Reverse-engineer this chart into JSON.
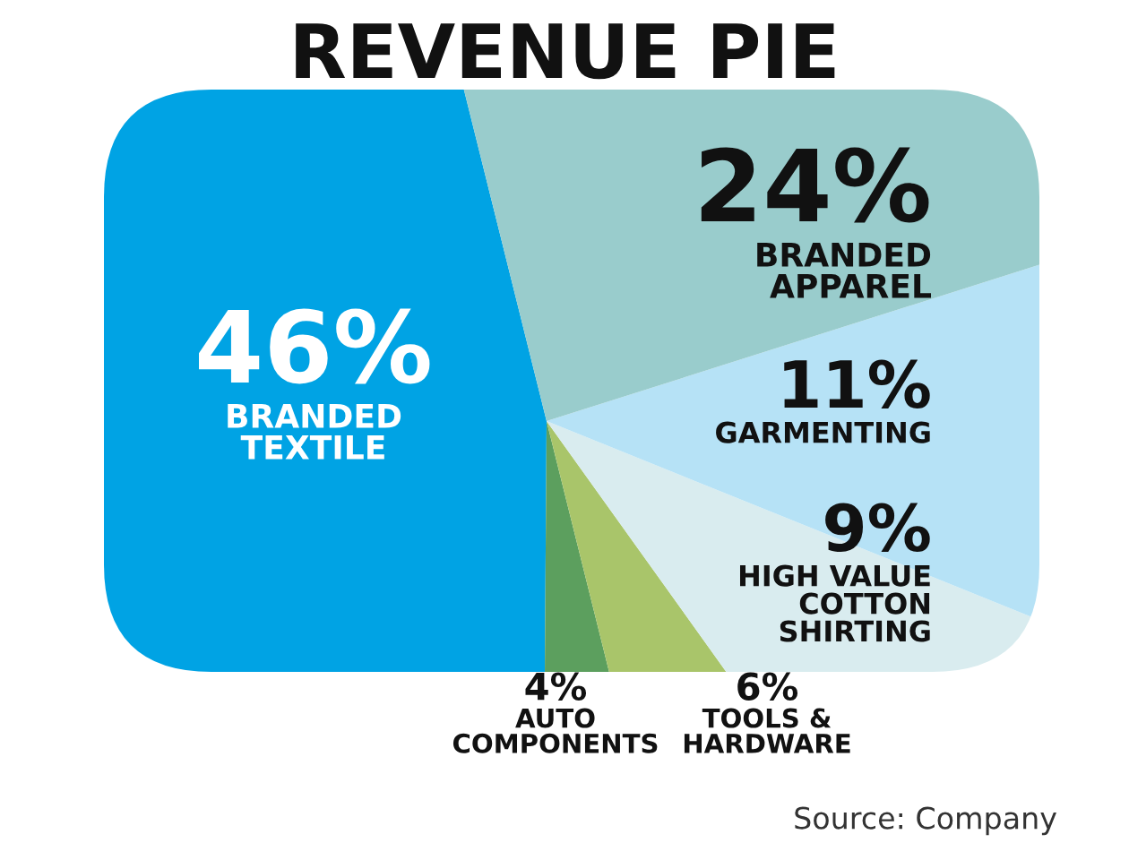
{
  "chart_data": {
    "type": "pie",
    "title": "REVENUE PIE",
    "categories": [
      "BRANDED\nTEXTILE",
      "AUTO\nCOMPONENTS",
      "TOOLS &\nHARDWARE",
      "HIGH VALUE\nCOTTON\nSHIRTING",
      "GARMENTING",
      "BRANDED\nAPPAREL"
    ],
    "values": [
      46,
      4,
      6,
      9,
      11,
      24
    ],
    "value_labels": [
      "46%",
      "4%",
      "6%",
      "9%",
      "11%",
      "24%"
    ],
    "colors": [
      "#00a3e4",
      "#5c9f5e",
      "#a9c56a",
      "#d9ecef",
      "#b6e2f6",
      "#99cccc"
    ],
    "annotations": [
      "Source: Company"
    ]
  }
}
